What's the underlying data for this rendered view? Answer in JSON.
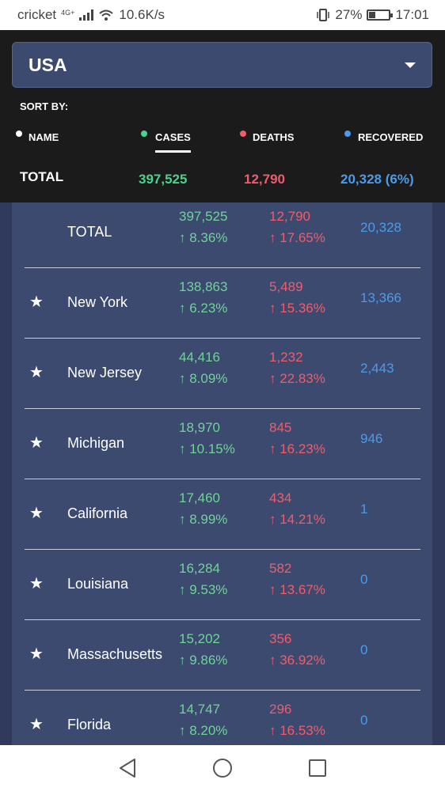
{
  "status_bar": {
    "carrier": "cricket",
    "network": "4G+",
    "speed": "10.6K/s",
    "battery": "27%",
    "time": "17:01"
  },
  "selector": {
    "value": "USA"
  },
  "sort": {
    "label": "SORT BY:",
    "options": [
      {
        "label": "NAME",
        "color": "#ffffff"
      },
      {
        "label": "CASES",
        "color": "#4cd28b",
        "active": true
      },
      {
        "label": "DEATHS",
        "color": "#f05c6c"
      },
      {
        "label": "RECOVERED",
        "color": "#4c9be8"
      }
    ]
  },
  "totals": {
    "label": "TOTAL",
    "cases": "397,525",
    "deaths": "12,790",
    "recovered": "20,328 (6%)"
  },
  "rows": [
    {
      "starred": false,
      "star": "",
      "name": "TOTAL",
      "cases": "397,525",
      "cases_change": "↑ 8.36%",
      "deaths": "12,790",
      "deaths_change": "↑ 17.65%",
      "recovered": "20,328"
    },
    {
      "starred": true,
      "star": "★",
      "name": "New York",
      "cases": "138,863",
      "cases_change": "↑ 6.23%",
      "deaths": "5,489",
      "deaths_change": "↑ 15.36%",
      "recovered": "13,366"
    },
    {
      "starred": true,
      "star": "★",
      "name": "New Jersey",
      "cases": "44,416",
      "cases_change": "↑ 8.09%",
      "deaths": "1,232",
      "deaths_change": "↑ 22.83%",
      "recovered": "2,443"
    },
    {
      "starred": true,
      "star": "★",
      "name": "Michigan",
      "cases": "18,970",
      "cases_change": "↑ 10.15%",
      "deaths": "845",
      "deaths_change": "↑ 16.23%",
      "recovered": "946"
    },
    {
      "starred": true,
      "star": "★",
      "name": "California",
      "cases": "17,460",
      "cases_change": "↑ 8.99%",
      "deaths": "434",
      "deaths_change": "↑ 14.21%",
      "recovered": "1"
    },
    {
      "starred": true,
      "star": "★",
      "name": "Louisiana",
      "cases": "16,284",
      "cases_change": "↑ 9.53%",
      "deaths": "582",
      "deaths_change": "↑ 13.67%",
      "recovered": "0"
    },
    {
      "starred": true,
      "star": "★",
      "name": "Massachusetts",
      "cases": "15,202",
      "cases_change": "↑ 9.86%",
      "deaths": "356",
      "deaths_change": "↑ 36.92%",
      "recovered": "0"
    },
    {
      "starred": true,
      "star": "★",
      "name": "Florida",
      "cases": "14,747",
      "cases_change": "↑ 8.20%",
      "deaths": "296",
      "deaths_change": "↑ 16.53%",
      "recovered": "0"
    }
  ],
  "nav": {
    "back_icon": "back-triangle-icon",
    "home_icon": "home-circle-icon",
    "recents_icon": "recents-square-icon"
  }
}
